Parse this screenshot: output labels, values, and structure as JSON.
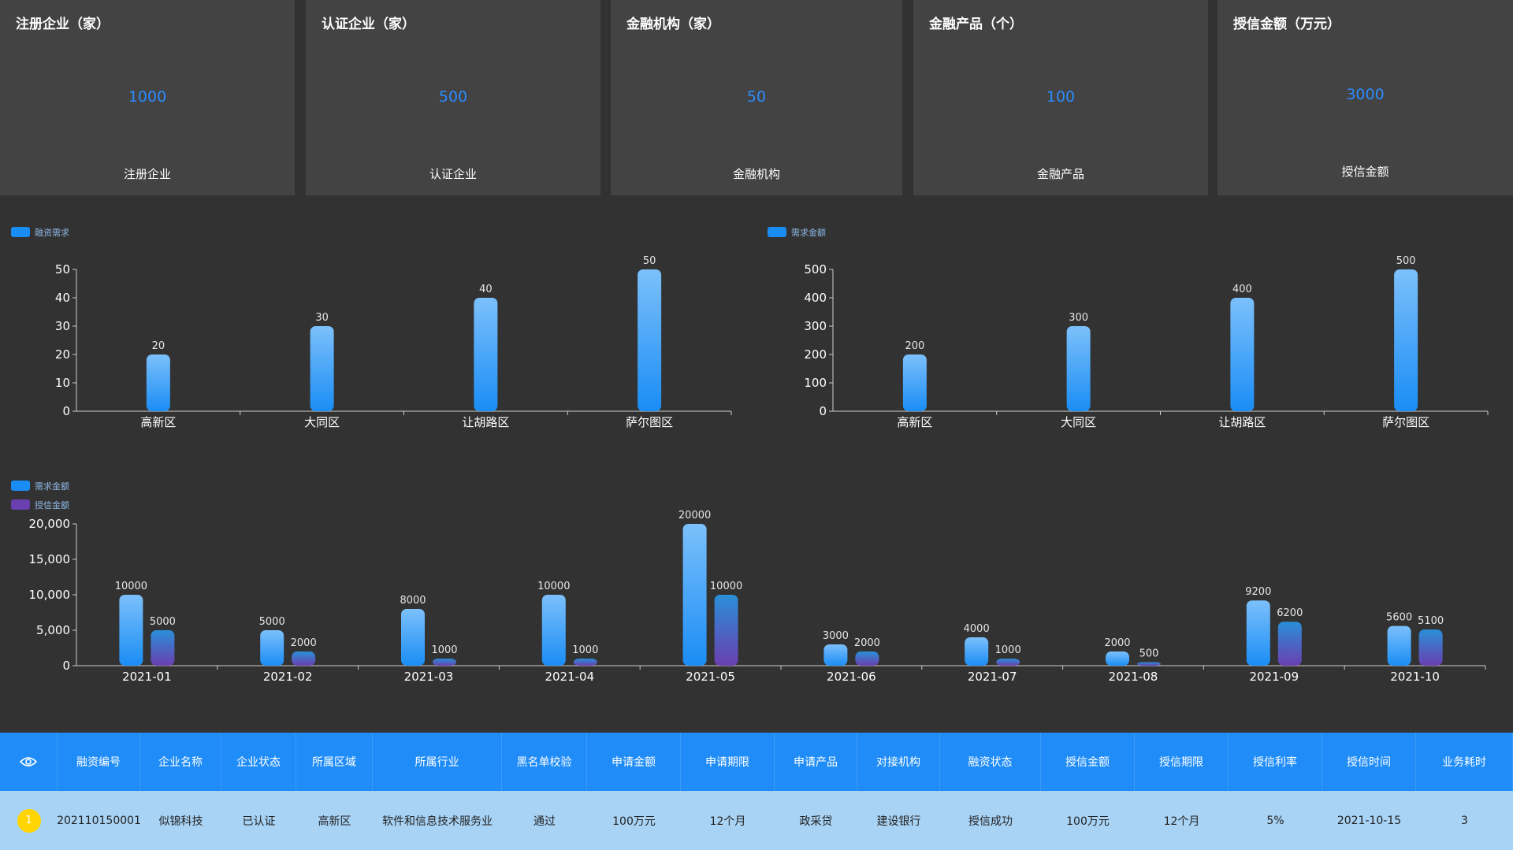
{
  "stats": [
    {
      "title": "注册企业（家）",
      "value": "1000",
      "label": "注册企业"
    },
    {
      "title": "认证企业（家）",
      "value": "500",
      "label": "认证企业"
    },
    {
      "title": "金融机构（家）",
      "value": "50",
      "label": "金融机构"
    },
    {
      "title": "金融产品（个）",
      "value": "100",
      "label": "金融产品"
    },
    {
      "title": "授信金额（万元）",
      "value": "3000",
      "label": "授信金额"
    }
  ],
  "colors": {
    "accent": "#2a8cff",
    "card_bg": "#444344",
    "page_bg": "#323232",
    "bar_blue_top": "#7cc0fb",
    "bar_blue_bottom": "#1a8df5",
    "bar_purple_top": "#2a8fd8",
    "bar_purple_bottom": "#6a3fb0",
    "table_header": "#1f8cf7",
    "table_row": "#a8d3f5",
    "badge": "#ffd400"
  },
  "chart_data": [
    {
      "type": "bar",
      "legend": [
        "融资需求"
      ],
      "categories": [
        "高新区",
        "大同区",
        "让胡路区",
        "萨尔图区"
      ],
      "series": [
        {
          "name": "融资需求",
          "values": [
            20,
            30,
            40,
            50
          ]
        }
      ],
      "ylim": [
        0,
        50
      ],
      "yticks": [
        "0",
        "10",
        "20",
        "30",
        "40",
        "50"
      ],
      "grid": false,
      "legend_position": "top-left"
    },
    {
      "type": "bar",
      "legend": [
        "需求金额"
      ],
      "categories": [
        "高新区",
        "大同区",
        "让胡路区",
        "萨尔图区"
      ],
      "series": [
        {
          "name": "需求金额",
          "values": [
            200,
            300,
            400,
            500
          ]
        }
      ],
      "ylim": [
        0,
        500
      ],
      "yticks": [
        "0",
        "100",
        "200",
        "300",
        "400",
        "500"
      ],
      "grid": false,
      "legend_position": "top-left"
    },
    {
      "type": "bar",
      "legend": [
        "需求金额",
        "授信金额"
      ],
      "categories": [
        "2021-01",
        "2021-02",
        "2021-03",
        "2021-04",
        "2021-05",
        "2021-06",
        "2021-07",
        "2021-08",
        "2021-09",
        "2021-10"
      ],
      "series": [
        {
          "name": "需求金额",
          "values": [
            10000,
            5000,
            8000,
            10000,
            20000,
            3000,
            4000,
            2000,
            9200,
            5600
          ]
        },
        {
          "name": "授信金额",
          "values": [
            5000,
            2000,
            1000,
            1000,
            10000,
            2000,
            1000,
            500,
            6200,
            5100
          ]
        }
      ],
      "ylim": [
        0,
        20000
      ],
      "yticks": [
        "0",
        "5,000",
        "10,000",
        "15,000",
        "20,000"
      ],
      "grid": false,
      "legend_position": "top-left"
    }
  ],
  "table": {
    "eye_icon": "eye-icon",
    "headers": [
      "融资编号",
      "企业名称",
      "企业状态",
      "所属区域",
      "所属行业",
      "黑名单校验",
      "申请金额",
      "申请期限",
      "申请产品",
      "对接机构",
      "融资状态",
      "授信金额",
      "授信期限",
      "授信利率",
      "授信时间",
      "业务耗时"
    ],
    "rows": [
      {
        "rank": "1",
        "cells": [
          "202110150001",
          "似锦科技",
          "已认证",
          "高新区",
          "软件和信息技术服务业",
          "通过",
          "100万元",
          "12个月",
          "政采贷",
          "建设银行",
          "授信成功",
          "100万元",
          "12个月",
          "5%",
          "2021-10-15",
          "3"
        ]
      }
    ]
  }
}
